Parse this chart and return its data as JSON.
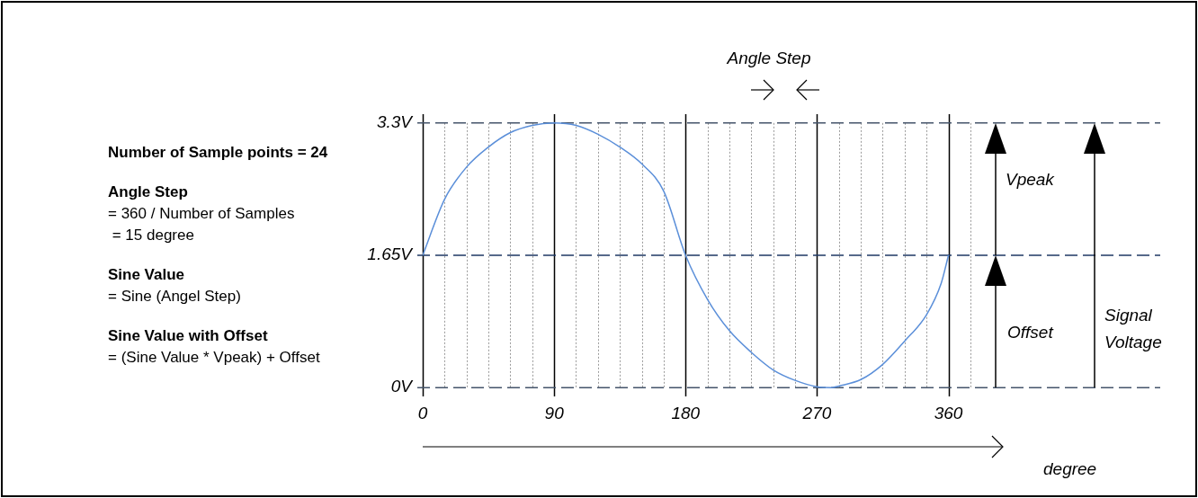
{
  "chart_data": {
    "type": "line",
    "x": [
      0,
      15,
      30,
      45,
      60,
      75,
      90,
      105,
      120,
      135,
      150,
      165,
      180,
      195,
      210,
      225,
      240,
      255,
      270,
      280,
      285,
      300,
      315,
      330,
      345,
      355,
      360
    ],
    "series": [
      {
        "color": "#5b8fd9",
        "values": [
          1.65,
          2.35,
          2.75,
          3.0,
          3.18,
          3.27,
          3.3,
          3.27,
          3.16,
          3.0,
          2.79,
          2.45,
          1.65,
          1.1,
          0.71,
          0.44,
          0.22,
          0.09,
          0.01,
          0,
          0.02,
          0.1,
          0.29,
          0.58,
          0.91,
          1.3,
          1.65
        ]
      }
    ],
    "xlim": [
      0,
      505
    ],
    "xticks": [
      0,
      {
        "value": 15,
        "label": null
      },
      {
        "value": 30,
        "label": null
      },
      {
        "value": 45,
        "label": null
      },
      {
        "value": 60,
        "label": null
      },
      {
        "value": 75,
        "label": null
      },
      90,
      {
        "value": 105,
        "label": null
      },
      {
        "value": 120,
        "label": null
      },
      {
        "value": 135,
        "label": null
      },
      {
        "value": 150,
        "label": null
      },
      {
        "value": 165,
        "label": null
      },
      180,
      {
        "value": 195,
        "label": null
      },
      {
        "value": 210,
        "label": null
      },
      {
        "value": 225,
        "label": null
      },
      {
        "value": 240,
        "label": null
      },
      {
        "value": 255,
        "label": null
      },
      270,
      {
        "value": 285,
        "label": null
      },
      {
        "value": 300,
        "label": null
      },
      {
        "value": 315,
        "label": null
      },
      {
        "value": 330,
        "label": null
      },
      {
        "value": 345,
        "label": null
      },
      360,
      {
        "value": 375,
        "label": null
      }
    ],
    "ylim": [
      -0.11,
      3.41
    ],
    "yticks": [
      {
        "value": 0,
        "label": "0V"
      },
      {
        "value": 1.65,
        "label": "1.65V"
      },
      {
        "value": 3.3,
        "label": "3.3V"
      }
    ],
    "xlabel": "degree",
    "grid": "x",
    "marker": "none",
    "ref_lines": [
      {
        "axis": "y",
        "value": 3.3,
        "color": "#44546a",
        "line_style": "dashed"
      },
      {
        "axis": "y",
        "value": 1.65,
        "color": "#1f3864",
        "line_style": "dashed"
      },
      {
        "axis": "y",
        "value": 0,
        "color": "#44546a",
        "line_style": "dashed"
      }
    ],
    "annotations": [
      "Number of Sample points = 24",
      "Angle Step\n= 360 / Number of Samples\n = 15 degree",
      "Sine Value\n= Sine (Angel Step)",
      "Sine Value with Offset\n= (Sine Value * Vpeak) + Offset",
      "Angle Step",
      "Vpeak",
      "Offset",
      "Signal\nVoltage"
    ]
  }
}
